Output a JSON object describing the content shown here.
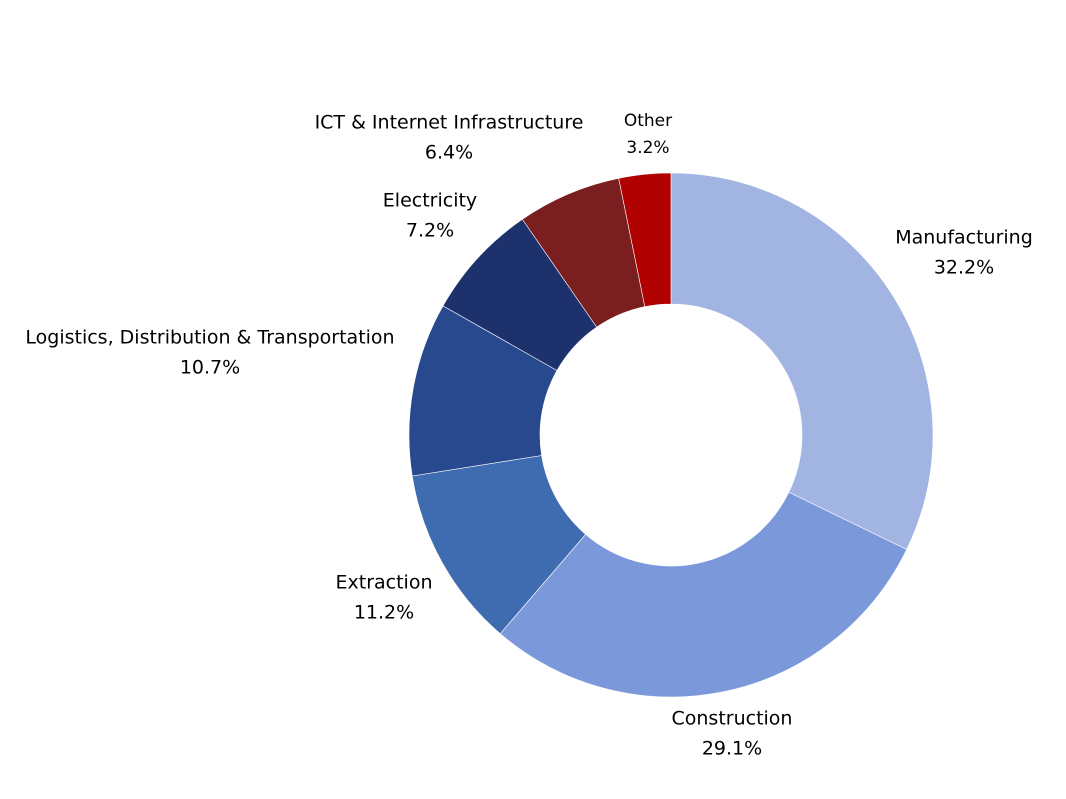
{
  "chart_data": {
    "type": "pie",
    "style": "donut",
    "start_angle_deg": 0,
    "direction": "clockwise",
    "series": [
      {
        "label": "Manufacturing",
        "value": 32.2,
        "value_label": "32.2%",
        "color": "#A1B4E2"
      },
      {
        "label": "Construction",
        "value": 29.1,
        "value_label": "29.1%",
        "color": "#7B98DB"
      },
      {
        "label": "Extraction",
        "value": 11.2,
        "value_label": "11.2%",
        "color": "#3F6CB0"
      },
      {
        "label": "Logistics, Distribution & Transportation",
        "value": 10.7,
        "value_label": "10.7%",
        "color": "#29498F"
      },
      {
        "label": "Electricity",
        "value": 7.2,
        "value_label": "7.2%",
        "color": "#1D316D"
      },
      {
        "label": "ICT & Internet Infrastructure",
        "value": 6.4,
        "value_label": "6.4%",
        "color": "#7A1E1F"
      },
      {
        "label": "Other",
        "value": 3.2,
        "value_label": "3.2%",
        "color": "#B00000"
      }
    ]
  }
}
